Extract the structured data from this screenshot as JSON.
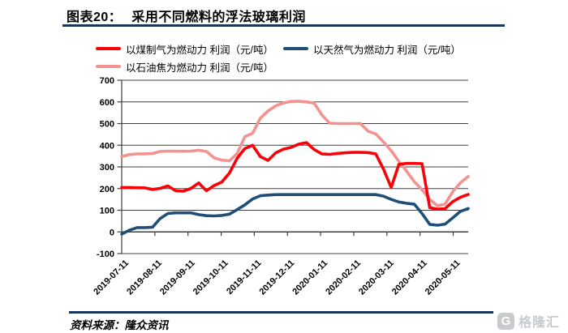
{
  "figure": {
    "label": "图表20：",
    "title": "采用不同燃料的浮法玻璃利润"
  },
  "legend": {
    "items": [
      {
        "label": "以煤制气为燃动力 利润（元/吨）",
        "color": "#FA0008"
      },
      {
        "label": "以天然气为燃动力 利润（元/吨）",
        "color": "#1F4E79"
      },
      {
        "label": "以石油焦为燃动力 利润（元/吨）",
        "color": "#F29291"
      }
    ]
  },
  "chart_data": {
    "type": "line",
    "title": "采用不同燃料的浮法玻璃利润",
    "y_unit": "元/吨",
    "ylim": [
      -100,
      700
    ],
    "y_ticks": [
      700,
      600,
      500,
      400,
      300,
      200,
      100,
      0,
      -100
    ],
    "grid": true,
    "legend_position": "top-left",
    "x_frequency": "weekly",
    "x_tick_labels": [
      "2019-07-11",
      "2019-08-11",
      "2019-09-11",
      "2019-10-11",
      "2019-11-11",
      "2019-12-11",
      "2020-01-11",
      "2020-02-11",
      "2020-03-11",
      "2020-04-11",
      "2020-05-11"
    ],
    "series": [
      {
        "name": "以煤制气为燃动力 利润（元/吨）",
        "color": "#FA0008",
        "values": [
          205,
          205,
          204,
          203,
          196,
          201,
          212,
          190,
          188,
          201,
          226,
          190,
          214,
          230,
          272,
          340,
          385,
          400,
          348,
          330,
          365,
          382,
          390,
          405,
          412,
          380,
          360,
          358,
          362,
          365,
          367,
          367,
          366,
          360,
          290,
          205,
          312,
          316,
          316,
          315,
          112,
          105,
          107,
          140,
          160,
          173
        ]
      },
      {
        "name": "以天然气为燃动力 利润（元/吨）",
        "color": "#1F4E79",
        "values": [
          -10,
          8,
          20,
          20,
          22,
          62,
          85,
          88,
          88,
          88,
          80,
          75,
          74,
          76,
          82,
          103,
          125,
          152,
          167,
          170,
          172,
          172,
          172,
          172,
          172,
          172,
          172,
          172,
          172,
          172,
          172,
          172,
          172,
          172,
          165,
          150,
          138,
          132,
          128,
          85,
          35,
          31,
          36,
          65,
          95,
          108
        ]
      },
      {
        "name": "以石油焦为燃动力 利润（元/吨）",
        "color": "#F29291",
        "values": [
          348,
          357,
          360,
          360,
          362,
          371,
          373,
          372,
          372,
          373,
          377,
          371,
          342,
          331,
          328,
          362,
          440,
          455,
          525,
          558,
          582,
          595,
          602,
          603,
          600,
          594,
          540,
          502,
          500,
          500,
          500,
          500,
          465,
          452,
          415,
          375,
          325,
          280,
          232,
          195,
          150,
          121,
          128,
          186,
          227,
          256
        ]
      }
    ]
  },
  "footer": {
    "source": "资料来源：隆众资讯",
    "logo": {
      "icon": "G",
      "text": "格隆汇"
    }
  }
}
